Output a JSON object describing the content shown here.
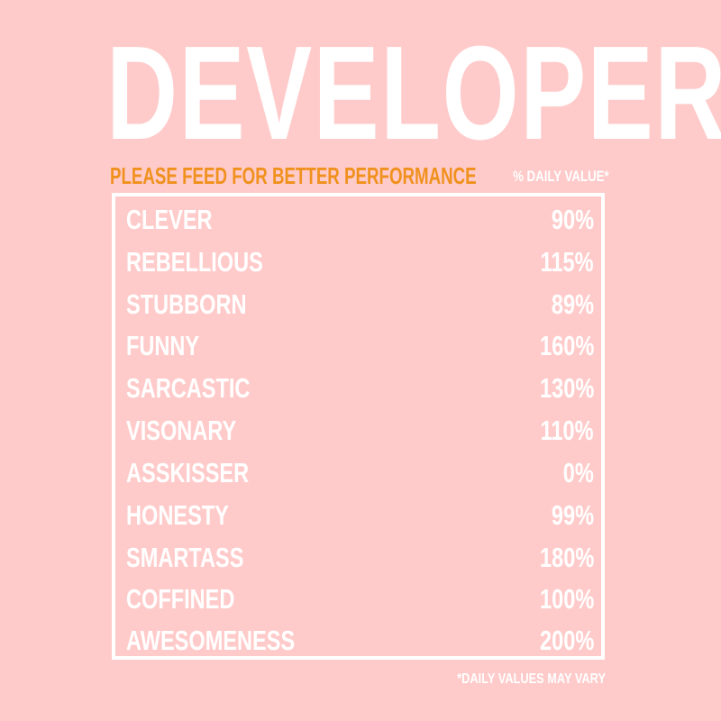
{
  "title": "DEVELOPER",
  "subtitle": "PLEASE FEED FOR BETTER PERFORMANCE",
  "daily_value_header": "% DAILY VALUE*",
  "facts": [
    {
      "label": "CLEVER",
      "value": "90%"
    },
    {
      "label": "REBELLIOUS",
      "value": "115%"
    },
    {
      "label": "STUBBORN",
      "value": "89%"
    },
    {
      "label": "FUNNY",
      "value": "160%"
    },
    {
      "label": "SARCASTIC",
      "value": "130%"
    },
    {
      "label": "VISONARY",
      "value": "110%"
    },
    {
      "label": "ASSKISSER",
      "value": "0%"
    },
    {
      "label": "HONESTY",
      "value": "99%"
    },
    {
      "label": "SMARTASS",
      "value": "180%"
    },
    {
      "label": "COFFINED",
      "value": "100%"
    },
    {
      "label": "AWESOMENESS",
      "value": "200%"
    }
  ],
  "footnote": "*DAILY VALUES MAY VARY",
  "colors": {
    "background": "#ffcbca",
    "text": "#ffffff",
    "accent": "#f0911e"
  }
}
